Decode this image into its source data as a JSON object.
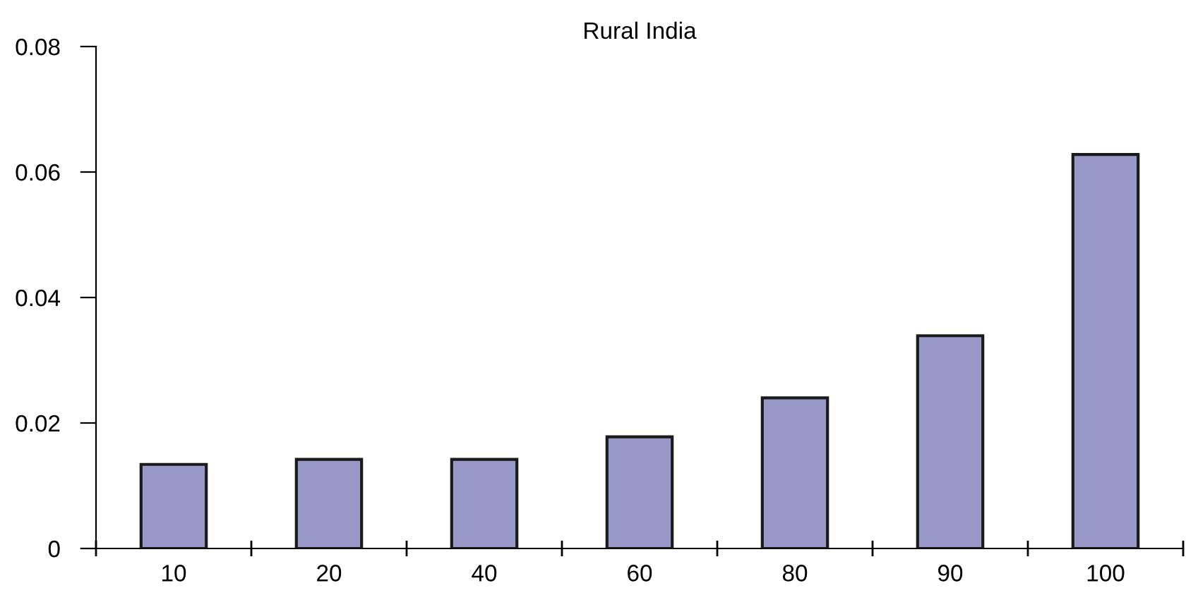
{
  "chart_data": {
    "type": "bar",
    "title": "Rural India",
    "categories": [
      "10",
      "20",
      "40",
      "60",
      "80",
      "90",
      "100"
    ],
    "values": [
      0.0134,
      0.0142,
      0.0142,
      0.0178,
      0.024,
      0.0339,
      0.0628
    ],
    "color": "#9999c9",
    "ylim": [
      0,
      0.08
    ],
    "yticks": [
      {
        "value": 0,
        "label": "0"
      },
      0.02,
      0.04,
      0.06,
      0.08
    ],
    "grid": false,
    "legend": false
  }
}
